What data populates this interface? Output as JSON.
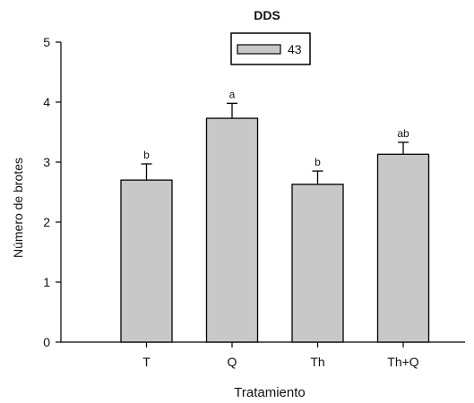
{
  "chart_data": {
    "type": "bar",
    "title": "",
    "legend": {
      "title": "DDS",
      "entries": [
        {
          "label": "43",
          "color": "#c8c8c8"
        }
      ],
      "placement": "top-center"
    },
    "categories": [
      "T",
      "Q",
      "Th",
      "Th+Q"
    ],
    "series": [
      {
        "name": "43",
        "values": [
          2.7,
          3.73,
          2.63,
          3.13
        ]
      }
    ],
    "errors": [
      0.27,
      0.25,
      0.22,
      0.2
    ],
    "letters": [
      "b",
      "a",
      "b",
      "ab"
    ],
    "xlabel": "Tratamiento",
    "ylabel": "Número de brotes",
    "ylim": [
      0,
      5
    ],
    "yticks": [
      "0",
      "1",
      "2",
      "3",
      "4",
      "5"
    ],
    "grid": false,
    "colors": {
      "bar_fill": "#c8c8c8",
      "bar_stroke": "#000000"
    }
  }
}
